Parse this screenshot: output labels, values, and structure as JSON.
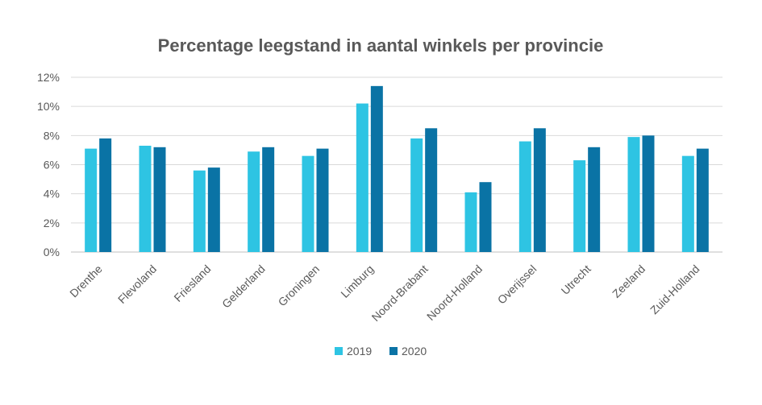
{
  "chart_data": {
    "type": "bar",
    "title": "Percentage leegstand in aantal winkels per provincie",
    "xlabel": "",
    "ylabel": "",
    "categories": [
      "Drenthe",
      "Flevoland",
      "Friesland",
      "Gelderland",
      "Groningen",
      "Limburg",
      "Noord-Brabant",
      "Noord-Holland",
      "Overijssel",
      "Utrecht",
      "Zeeland",
      "Zuid-Holland"
    ],
    "series": [
      {
        "name": "2019",
        "color": "#2EC4E3",
        "values": [
          7.1,
          7.3,
          5.6,
          6.9,
          6.6,
          10.2,
          7.8,
          4.1,
          7.6,
          6.3,
          7.9,
          6.6
        ]
      },
      {
        "name": "2020",
        "color": "#0A73A5",
        "values": [
          7.8,
          7.2,
          5.8,
          7.2,
          7.1,
          11.4,
          8.5,
          4.8,
          8.5,
          7.2,
          8.0,
          7.1
        ]
      }
    ],
    "ylim": [
      0,
      12
    ],
    "yticks": [
      "0%",
      "2%",
      "4%",
      "6%",
      "8%",
      "10%",
      "12%"
    ],
    "grid": true,
    "legend_position": "bottom"
  }
}
